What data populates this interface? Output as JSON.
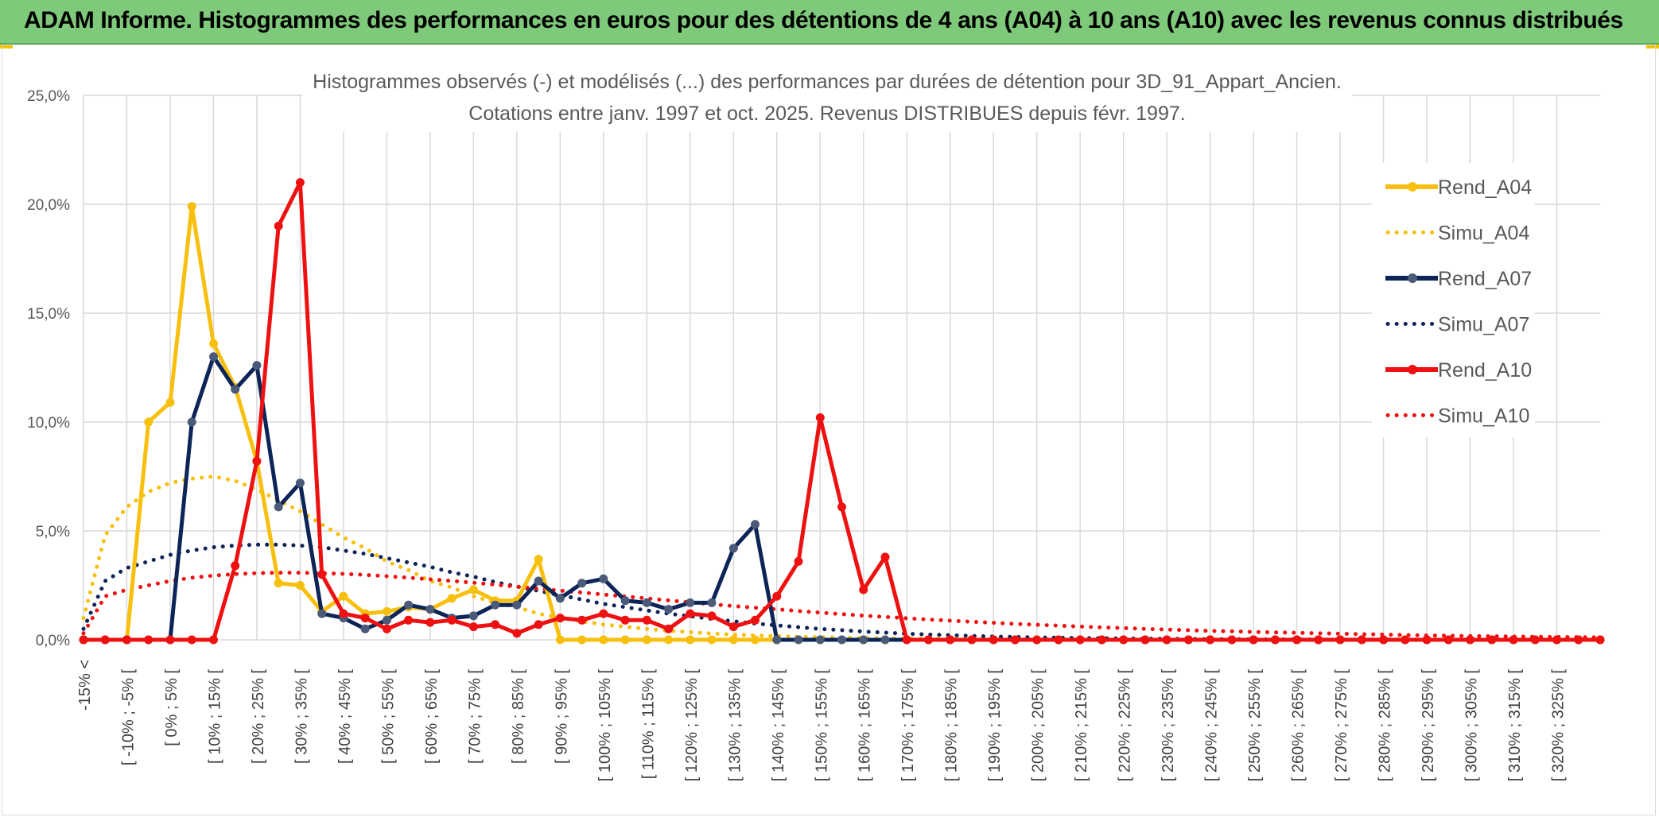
{
  "banner": {
    "title": "ADAM Informe. Histogrammes des performances en euros pour des détentions de 4 ans (A04) à 10 ans (A10) avec les revenus connus distribués"
  },
  "colors": {
    "banner_bg": "#7fc97a",
    "a04": "#f7bf0e",
    "a07": "#0d2457",
    "a10": "#ee1111",
    "grid": "#d9d9d9"
  },
  "chart_data": {
    "type": "line",
    "title": "Histogrammes observés (-) et modélisés (...) des performances par durées de détention pour 3D_91_Appart_Ancien.",
    "subtitle": "Cotations entre janv. 1997 et oct. 2025. Revenus DISTRIBUES depuis févr. 1997.",
    "xlabel": "",
    "ylabel": "",
    "ylim": [
      0,
      25
    ],
    "y_ticks": [
      "0,0%",
      "5,0%",
      "10,0%",
      "15,0%",
      "20,0%",
      "25,0%"
    ],
    "x_labels": [
      "-15% <",
      "[ -10% ; -5% [",
      "[ 0% ; 5% [",
      "[ 10% ; 15% [",
      "[ 20% ; 25% [",
      "[ 30% ; 35% [",
      "[ 40% ; 45% [",
      "[ 50% ; 55% [",
      "[ 60% ; 65% [",
      "[ 70% ; 75% [",
      "[ 80% ; 85% [",
      "[ 90% ; 95% [",
      "[ 100% ; 105% [",
      "[ 110% ; 115% [",
      "[ 120% ; 125% [",
      "[ 130% ; 135% [",
      "[ 140% ; 145% [",
      "[ 150% ; 155% [",
      "[ 160% ; 165% [",
      "[ 170% ; 175% [",
      "[ 180% ; 185% [",
      "[ 190% ; 195% [",
      "[ 200% ; 205% [",
      "[ 210% ; 215% [",
      "[ 220% ; 225% [",
      "[ 230% ; 235% [",
      "[ 240% ; 245% [",
      "[ 250% ; 255% [",
      "[ 260% ; 265% [",
      "[ 270% ; 275% [",
      "[ 280% ; 285% [",
      "[ 290% ; 295% [",
      "[ 300% ; 305% [",
      "[ 310% ; 315% [",
      "[ 320% ; 325% ["
    ],
    "num_points": 71,
    "legend_position": "right",
    "series": [
      {
        "name": "Rend_A04",
        "style": "solid",
        "markers": true,
        "color": "#f7bf0e",
        "values": [
          0,
          0,
          0,
          10.0,
          10.9,
          19.9,
          13.6,
          11.6,
          8.2,
          2.6,
          2.5,
          1.3,
          2.0,
          1.2,
          1.3,
          1.5,
          1.4,
          1.9,
          2.3,
          1.8,
          1.8,
          3.7,
          0,
          0,
          0,
          0,
          0,
          0,
          0,
          0,
          0,
          0,
          0,
          0,
          0,
          0,
          0,
          0,
          0,
          0,
          0,
          0,
          0,
          0,
          0,
          0,
          0,
          0,
          0,
          0,
          0,
          0,
          0,
          0,
          0,
          0,
          0,
          0,
          0,
          0,
          0,
          0,
          0,
          0,
          0,
          0,
          0,
          0,
          0,
          0,
          0
        ]
      },
      {
        "name": "Simu_A04",
        "style": "dotted",
        "markers": false,
        "color": "#f7bf0e",
        "values": [
          1.0,
          4.8,
          6.1,
          6.8,
          7.2,
          7.4,
          7.5,
          7.3,
          6.9,
          6.4,
          5.9,
          5.3,
          4.7,
          4.2,
          3.6,
          3.2,
          2.7,
          2.4,
          2.0,
          1.7,
          1.5,
          1.2,
          1.0,
          0.85,
          0.7,
          0.6,
          0.5,
          0.42,
          0.35,
          0.29,
          0.24,
          0.2,
          0.17,
          0.14,
          0.12,
          0.1,
          0.08,
          0.07,
          0.06,
          0.05,
          0.04,
          0.03,
          0.03,
          0.02,
          0.02,
          0.02,
          0.01,
          0.01,
          0.01,
          0.01,
          0,
          0,
          0,
          0,
          0,
          0,
          0,
          0,
          0,
          0,
          0,
          0,
          0,
          0,
          0,
          0,
          0,
          0,
          0,
          0,
          0
        ]
      },
      {
        "name": "Rend_A07",
        "style": "solid",
        "markers": true,
        "color": "#0d2457",
        "values": [
          0,
          0,
          0,
          0,
          0,
          10.0,
          13.0,
          11.5,
          12.6,
          6.1,
          7.2,
          1.2,
          1.0,
          0.5,
          0.9,
          1.6,
          1.4,
          1.0,
          1.1,
          1.6,
          1.6,
          2.7,
          1.9,
          2.6,
          2.8,
          1.8,
          1.7,
          1.4,
          1.7,
          1.7,
          4.2,
          5.3,
          0,
          0,
          0,
          0,
          0,
          0,
          0,
          0,
          0,
          0,
          0,
          0,
          0,
          0,
          0,
          0,
          0,
          0,
          0,
          0,
          0,
          0,
          0,
          0,
          0,
          0,
          0,
          0,
          0,
          0,
          0,
          0,
          0,
          0,
          0,
          0,
          0,
          0,
          0
        ]
      },
      {
        "name": "Simu_A07",
        "style": "dotted",
        "markers": false,
        "color": "#0d2457",
        "values": [
          0.5,
          2.7,
          3.3,
          3.6,
          3.9,
          4.1,
          4.25,
          4.33,
          4.37,
          4.37,
          4.33,
          4.25,
          4.1,
          3.95,
          3.75,
          3.55,
          3.35,
          3.1,
          2.9,
          2.65,
          2.45,
          2.25,
          2.05,
          1.85,
          1.65,
          1.5,
          1.35,
          1.2,
          1.08,
          0.96,
          0.85,
          0.75,
          0.66,
          0.58,
          0.5,
          0.44,
          0.38,
          0.33,
          0.28,
          0.24,
          0.21,
          0.18,
          0.15,
          0.13,
          0.11,
          0.1,
          0.08,
          0.07,
          0.06,
          0.05,
          0.04,
          0.04,
          0.03,
          0.03,
          0.02,
          0.02,
          0.02,
          0.01,
          0.01,
          0.01,
          0.01,
          0.01,
          0,
          0,
          0,
          0,
          0,
          0,
          0,
          0,
          0
        ]
      },
      {
        "name": "Rend_A10",
        "style": "solid",
        "markers": true,
        "color": "#ee1111",
        "values": [
          0,
          0,
          0,
          0,
          0,
          0,
          0,
          3.4,
          8.2,
          19.0,
          21.0,
          3.0,
          1.2,
          1.0,
          0.5,
          0.9,
          0.8,
          0.9,
          0.6,
          0.7,
          0.3,
          0.7,
          1.0,
          0.9,
          1.2,
          0.9,
          0.9,
          0.5,
          1.2,
          1.1,
          0.6,
          0.9,
          2.0,
          3.6,
          10.2,
          6.1,
          2.3,
          3.8,
          0,
          0,
          0,
          0,
          0,
          0,
          0,
          0,
          0,
          0,
          0,
          0,
          0,
          0,
          0,
          0,
          0,
          0,
          0,
          0,
          0,
          0,
          0,
          0,
          0,
          0,
          0,
          0,
          0,
          0,
          0,
          0,
          0
        ]
      },
      {
        "name": "Simu_A10",
        "style": "dotted",
        "markers": false,
        "color": "#ee1111",
        "values": [
          0.3,
          2.0,
          2.3,
          2.5,
          2.7,
          2.85,
          2.95,
          3.02,
          3.06,
          3.08,
          3.08,
          3.06,
          3.03,
          2.98,
          2.92,
          2.85,
          2.78,
          2.7,
          2.62,
          2.53,
          2.44,
          2.35,
          2.26,
          2.17,
          2.08,
          1.99,
          1.9,
          1.81,
          1.72,
          1.63,
          1.55,
          1.47,
          1.4,
          1.32,
          1.25,
          1.18,
          1.11,
          1.05,
          0.99,
          0.93,
          0.88,
          0.83,
          0.78,
          0.73,
          0.69,
          0.65,
          0.61,
          0.57,
          0.54,
          0.5,
          0.47,
          0.44,
          0.41,
          0.39,
          0.36,
          0.34,
          0.32,
          0.3,
          0.28,
          0.26,
          0.24,
          0.22,
          0.2,
          0.19,
          0.17,
          0.16,
          0.15,
          0.14,
          0.13,
          0.12,
          0.11
        ]
      }
    ]
  }
}
